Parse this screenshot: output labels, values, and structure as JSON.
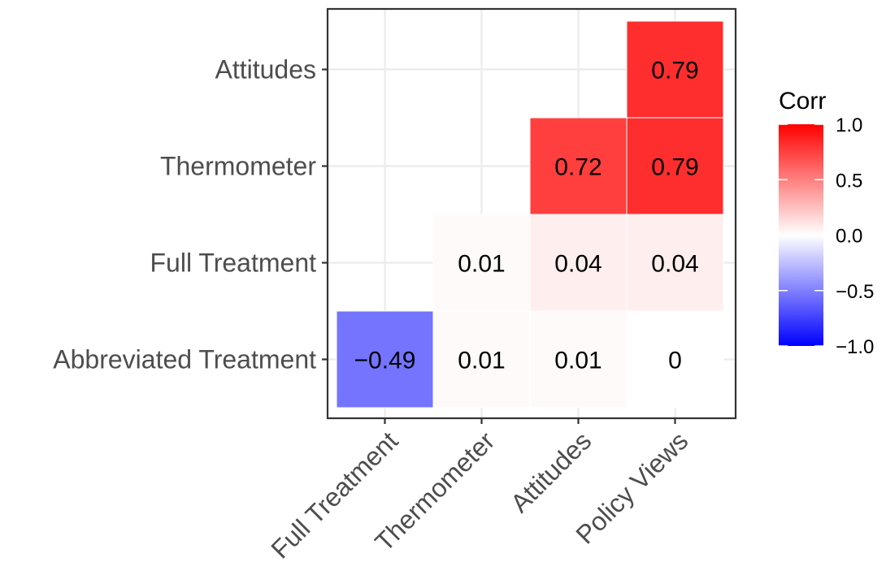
{
  "chart_data": {
    "type": "heatmap",
    "x_categories": [
      "Full Treatment",
      "Thermometer",
      "Attitudes",
      "Policy Views"
    ],
    "y_categories": [
      "Abbreviated Treatment",
      "Full Treatment",
      "Thermometer",
      "Attitudes"
    ],
    "cells": [
      {
        "x": "Full Treatment",
        "y": "Abbreviated Treatment",
        "value": -0.49,
        "label": "−0.49"
      },
      {
        "x": "Thermometer",
        "y": "Abbreviated Treatment",
        "value": 0.01,
        "label": "0.01"
      },
      {
        "x": "Attitudes",
        "y": "Abbreviated Treatment",
        "value": 0.01,
        "label": "0.01"
      },
      {
        "x": "Policy Views",
        "y": "Abbreviated Treatment",
        "value": 0,
        "label": "0"
      },
      {
        "x": "Thermometer",
        "y": "Full Treatment",
        "value": 0.01,
        "label": "0.01"
      },
      {
        "x": "Attitudes",
        "y": "Full Treatment",
        "value": 0.04,
        "label": "0.04"
      },
      {
        "x": "Policy Views",
        "y": "Full Treatment",
        "value": 0.04,
        "label": "0.04"
      },
      {
        "x": "Attitudes",
        "y": "Thermometer",
        "value": 0.72,
        "label": "0.72"
      },
      {
        "x": "Policy Views",
        "y": "Thermometer",
        "value": 0.79,
        "label": "0.79"
      },
      {
        "x": "Policy Views",
        "y": "Attitudes",
        "value": 0.79,
        "label": "0.79"
      }
    ],
    "legend": {
      "title": "Corr",
      "position": "right",
      "ticks": [
        {
          "value": 1.0,
          "label": "1.0"
        },
        {
          "value": 0.5,
          "label": "0.5"
        },
        {
          "value": 0.0,
          "label": "0.0"
        },
        {
          "value": -0.5,
          "label": "−0.5"
        },
        {
          "value": -1.0,
          "label": "−1.0"
        }
      ],
      "range": [
        -1,
        1
      ]
    },
    "colors": {
      "low": "#0000ff",
      "mid": "#ffffff",
      "high": "#ff0000",
      "grid": "#ebebeb",
      "panel_border": "#333333",
      "axis_text": "#4d4d4d",
      "cell_text": "#000000"
    },
    "grid": true,
    "xlabel": "",
    "ylabel": "",
    "title": ""
  }
}
